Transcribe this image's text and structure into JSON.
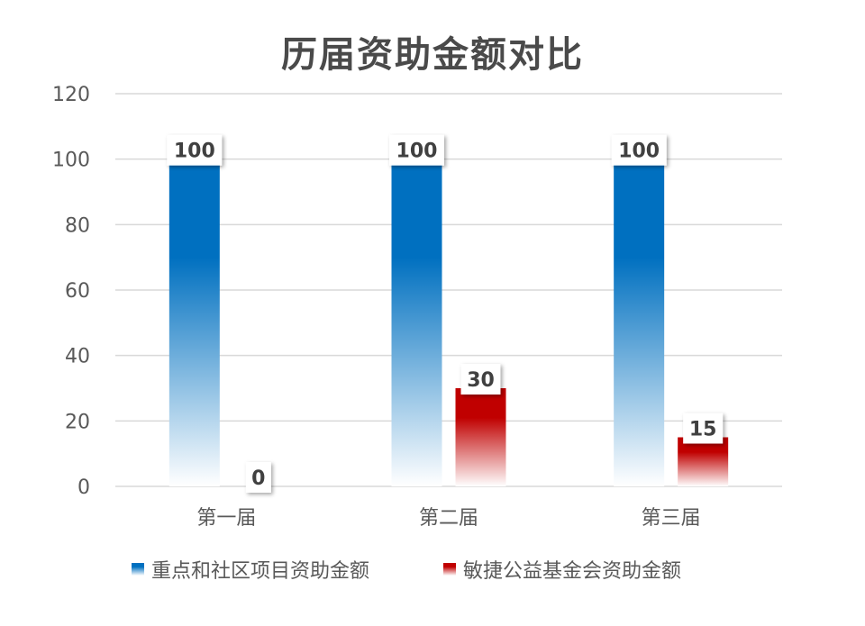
{
  "chart_data": {
    "type": "bar",
    "title": "历届资助金额对比",
    "categories": [
      "第一届",
      "第二届",
      "第三届"
    ],
    "series": [
      {
        "name": "重点和社区项目资助金额",
        "values": [
          100,
          100,
          100
        ],
        "color": "#0070c0"
      },
      {
        "name": "敏捷公益基金会资助金额",
        "values": [
          0,
          30,
          15
        ],
        "color": "#c00000"
      }
    ],
    "data_labels": [
      [
        "100",
        "100",
        "100"
      ],
      [
        "0",
        "30",
        "15"
      ]
    ],
    "ylim": [
      0,
      120
    ],
    "yticks": [
      0,
      20,
      40,
      60,
      80,
      100,
      120
    ],
    "ytick_labels": [
      "0",
      "20",
      "40",
      "60",
      "80",
      "100",
      "120"
    ],
    "xlabel": "",
    "ylabel": "",
    "grid": true,
    "legend_position": "bottom"
  }
}
